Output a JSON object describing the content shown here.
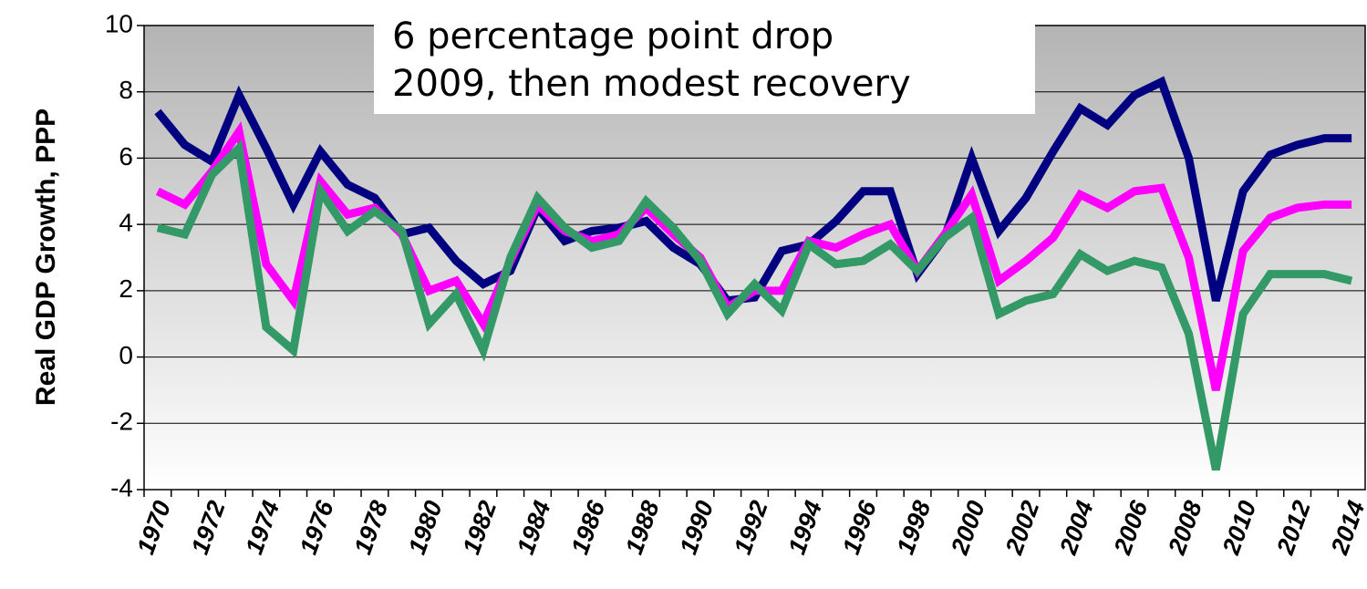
{
  "chart_data": {
    "type": "line",
    "y_label": "Real GDP Growth, PPP",
    "annotation": [
      "6 percentage point drop",
      "2009, then modest recovery"
    ],
    "categories": [
      "1970",
      null,
      "1972",
      null,
      "1974",
      null,
      "1976",
      null,
      "1978",
      null,
      "1980",
      null,
      "1982",
      null,
      "1984",
      null,
      "1986",
      null,
      "1988",
      null,
      "1990",
      null,
      "1992",
      null,
      "1994",
      null,
      "1996",
      null,
      "1998",
      null,
      "2000",
      null,
      "2002",
      null,
      "2004",
      null,
      "2006",
      null,
      "2008",
      null,
      "2010",
      null,
      "2012",
      null,
      "2014"
    ],
    "series": [
      {
        "color": "#000080",
        "values": [
          7.4,
          6.4,
          5.9,
          7.9,
          6.3,
          4.6,
          6.2,
          5.2,
          4.8,
          3.7,
          3.9,
          2.9,
          2.2,
          2.6,
          4.5,
          3.5,
          3.8,
          3.9,
          4.1,
          3.3,
          2.8,
          1.7,
          1.8,
          3.2,
          3.4,
          4.1,
          5.0,
          5.0,
          2.5,
          3.6,
          6.0,
          3.8,
          4.8,
          6.2,
          7.5,
          7.0,
          7.9,
          8.3,
          6.0,
          1.7,
          5.0,
          6.1,
          6.4,
          6.6,
          6.6
        ]
      },
      {
        "color": "#ff00ff",
        "values": [
          5.0,
          4.6,
          5.6,
          6.8,
          2.8,
          1.7,
          5.3,
          4.3,
          4.5,
          3.7,
          2.0,
          2.3,
          1.0,
          2.9,
          4.6,
          3.8,
          3.5,
          3.7,
          4.5,
          3.7,
          3.0,
          1.5,
          2.0,
          2.0,
          3.5,
          3.3,
          3.7,
          4.0,
          2.6,
          3.7,
          4.9,
          2.3,
          2.9,
          3.6,
          4.9,
          4.5,
          5.0,
          5.1,
          3.0,
          -1.0,
          3.2,
          4.2,
          4.5,
          4.6,
          4.6
        ]
      },
      {
        "color": "#339966",
        "values": [
          3.9,
          3.7,
          5.5,
          6.3,
          0.9,
          0.2,
          5.0,
          3.8,
          4.4,
          3.8,
          1.0,
          1.9,
          0.2,
          3.0,
          4.8,
          3.9,
          3.3,
          3.5,
          4.7,
          3.9,
          2.9,
          1.3,
          2.2,
          1.4,
          3.4,
          2.8,
          2.9,
          3.4,
          2.6,
          3.6,
          4.2,
          1.3,
          1.7,
          1.9,
          3.1,
          2.6,
          2.9,
          2.7,
          0.7,
          -3.4,
          1.3,
          2.5,
          2.5,
          2.5,
          2.3
        ]
      }
    ],
    "ylim": [
      -4,
      10
    ],
    "yticks": [
      -4,
      -2,
      0,
      2,
      4,
      6,
      8,
      10
    ],
    "grid": true
  }
}
